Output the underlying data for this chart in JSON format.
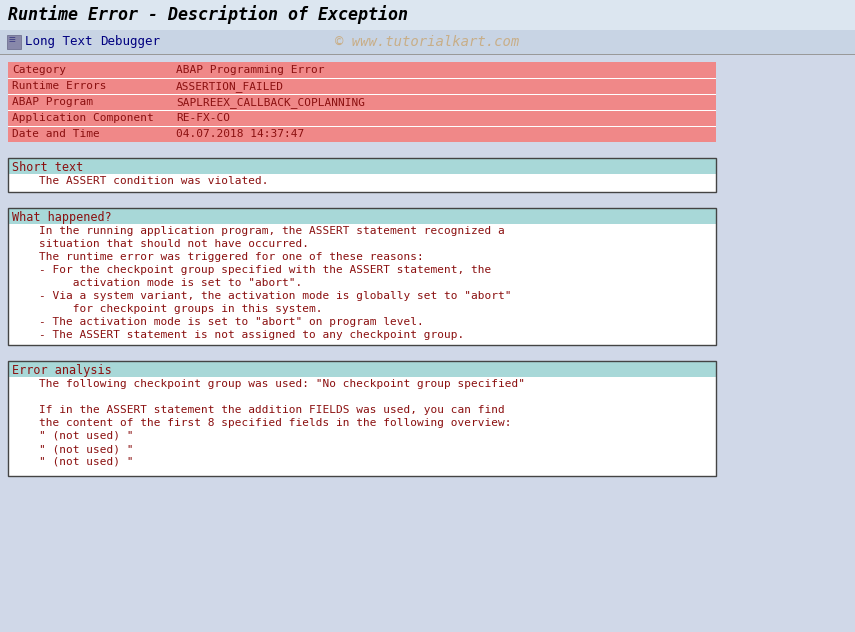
{
  "title": "Runtime Error - Description of Exception",
  "bg_color": "#d0d8e8",
  "title_bar_bg": "#dce6f0",
  "toolbar_bg": "#c8d4e4",
  "watermark": "© www.tutorialkart.com",
  "table_bg": "#f08888",
  "table_row_sep": "#ffffff",
  "table_rows": [
    [
      "Category",
      "ABAP Programming Error"
    ],
    [
      "Runtime Errors",
      "ASSERTION_FAILED"
    ],
    [
      "ABAP Program",
      "SAPLREEX_CALLBACK_COPLANNING"
    ],
    [
      "Application Component",
      "RE-FX-CO"
    ],
    [
      "Date and Time",
      "04.07.2018 14:37:47"
    ]
  ],
  "section_header_bg": "#a8d8d8",
  "section_border_color": "#444444",
  "short_text_header": "Short text",
  "short_text_body": "    The ASSERT condition was violated.",
  "what_happened_header": "What happened?",
  "what_happened_body": [
    "    In the running application program, the ASSERT statement recognized a",
    "    situation that should not have occurred.",
    "    The runtime error was triggered for one of these reasons:",
    "    - For the checkpoint group specified with the ASSERT statement, the",
    "         activation mode is set to \"abort\".",
    "    - Via a system variant, the activation mode is globally set to \"abort\"",
    "         for checkpoint groups in this system.",
    "    - The activation mode is set to \"abort\" on program level.",
    "    - The ASSERT statement is not assigned to any checkpoint group."
  ],
  "error_analysis_header": "Error analysis",
  "error_analysis_body": [
    "    The following checkpoint group was used: \"No checkpoint group specified\"",
    "",
    "    If in the ASSERT statement the addition FIELDS was used, you can find",
    "    the content of the first 8 specified fields in the following overview:",
    "    \" (not used) \"",
    "    \" (not used) \"",
    "    \" (not used) \""
  ],
  "font_color": "#8b1010",
  "toolbar_text_color": "#000080",
  "watermark_color": "#c8a878",
  "mono_font": "monospace",
  "title_fontsize": 12,
  "body_fontsize": 8,
  "header_fontsize": 8.5
}
